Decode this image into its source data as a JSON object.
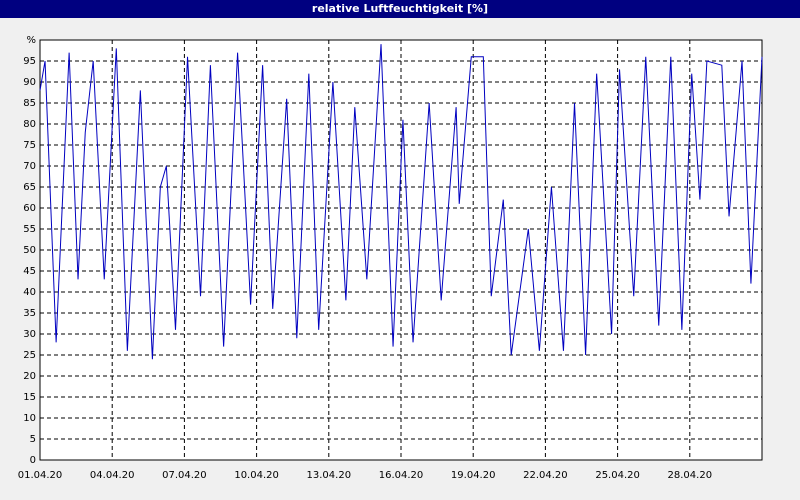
{
  "chart_data": {
    "type": "line",
    "title": "relative Luftfeuchtigkeit [%]",
    "x": [
      0,
      0.21,
      0.67,
      1.21,
      1.58,
      1.88,
      2.21,
      2.67,
      3.17,
      3.63,
      4.17,
      4.67,
      5,
      5.25,
      5.63,
      6.13,
      6.67,
      7.08,
      7.63,
      8.21,
      8.75,
      9.25,
      9.67,
      10.25,
      10.67,
      11.17,
      11.58,
      12.17,
      12.71,
      13.08,
      13.58,
      14.17,
      14.67,
      15.08,
      15.5,
      16.17,
      16.67,
      17.29,
      17.42,
      17.92,
      18.42,
      18.75,
      19.25,
      19.58,
      20.29,
      20.75,
      21.25,
      21.75,
      22.21,
      22.67,
      23.13,
      23.75,
      24.08,
      24.67,
      25.17,
      25.71,
      26.21,
      26.67,
      27.08,
      27.42,
      27.71,
      28.33,
      28.63,
      29.17,
      29.54,
      30
    ],
    "series": [
      {
        "color": "#0000c0",
        "values": [
          88,
          95,
          28,
          97,
          43,
          78,
          95,
          43,
          98,
          26,
          88,
          24,
          65,
          70,
          31,
          96,
          39,
          94,
          27,
          97,
          37,
          94,
          36,
          86,
          29,
          92,
          31,
          90,
          38,
          84,
          43,
          99,
          27,
          81,
          28,
          85,
          38,
          84,
          61,
          96,
          96,
          39,
          62,
          25,
          55,
          26,
          65,
          26,
          85,
          25,
          92,
          30,
          93,
          39,
          96,
          32,
          96,
          31,
          92,
          62,
          95,
          94,
          58,
          95,
          42,
          96
        ]
      }
    ],
    "xlim": [
      0,
      30
    ],
    "xticks": [
      {
        "value": 0,
        "label": "01.04.20"
      },
      {
        "value": 3,
        "label": "04.04.20"
      },
      {
        "value": 6,
        "label": "07.04.20"
      },
      {
        "value": 9,
        "label": "10.04.20"
      },
      {
        "value": 12,
        "label": "13.04.20"
      },
      {
        "value": 15,
        "label": "16.04.20"
      },
      {
        "value": 18,
        "label": "19.04.20"
      },
      {
        "value": 21,
        "label": "22.04.20"
      },
      {
        "value": 24,
        "label": "25.04.20"
      },
      {
        "value": 27,
        "label": "28.04.20"
      }
    ],
    "ylim": [
      0,
      100
    ],
    "yticks": [
      0,
      5,
      10,
      15,
      20,
      25,
      30,
      35,
      40,
      45,
      50,
      55,
      60,
      65,
      70,
      75,
      80,
      85,
      90,
      95,
      {
        "value": 100,
        "label": "%"
      }
    ],
    "grid": true
  }
}
